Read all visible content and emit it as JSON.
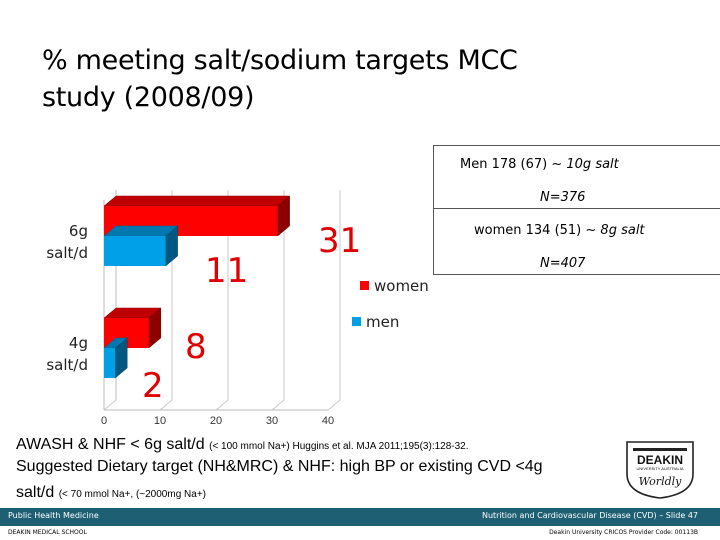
{
  "slide": {
    "title_line1": "% meeting  salt/sodium targets MCC",
    "title_line2": "study (2008/09)"
  },
  "infobox": {
    "men_prefix": "Men 178 (67) ~",
    "men_suffix": "10g salt",
    "men_n": "N=376",
    "women_prefix": "women 134 (51) ~",
    "women_suffix": "8g salt",
    "women_n": "N=407"
  },
  "chart_data": {
    "type": "bar",
    "orientation": "horizontal",
    "style": "3d",
    "categories": [
      "6g salt/d",
      "4g salt/d"
    ],
    "series": [
      {
        "name": "women",
        "values": [
          31,
          8
        ],
        "color": "#ff0000"
      },
      {
        "name": "men",
        "values": [
          11,
          2
        ],
        "color": "#00a0e8"
      }
    ],
    "xlim": [
      0,
      40
    ],
    "xticks": [
      "0",
      "10",
      "20",
      "30",
      "40"
    ],
    "data_labels": [
      "31",
      "11",
      "8",
      "2"
    ],
    "legend": {
      "position": "right",
      "entries": [
        "women",
        "men"
      ]
    },
    "grid": true
  },
  "notes": {
    "line1_main": "AWASH & NHF < 6g salt/d",
    "line1_small": "(< 100 mmol Na+)  Huggins et al. MJA 2011;195(3):128-32.",
    "line2": "Suggested Dietary target (NH&MRC) & NHF: high BP or existing CVD <4g",
    "line3_main": "salt/d",
    "line3_small": "(< 70 mmol Na+, (~2000mg Na+)"
  },
  "footer": {
    "left": "Public Health Medicine",
    "right": "Nutrition and Cardiovascular Disease (CVD) – Slide  47",
    "sub_left": "DEAKIN MEDICAL SCHOOL",
    "sub_right": "Deakin University CRICOS Provider Code: 00113B"
  },
  "logo": {
    "name": "DEAKIN",
    "tagline": "Worldly",
    "sub": "UNIVERSITY AUSTRALIA"
  }
}
